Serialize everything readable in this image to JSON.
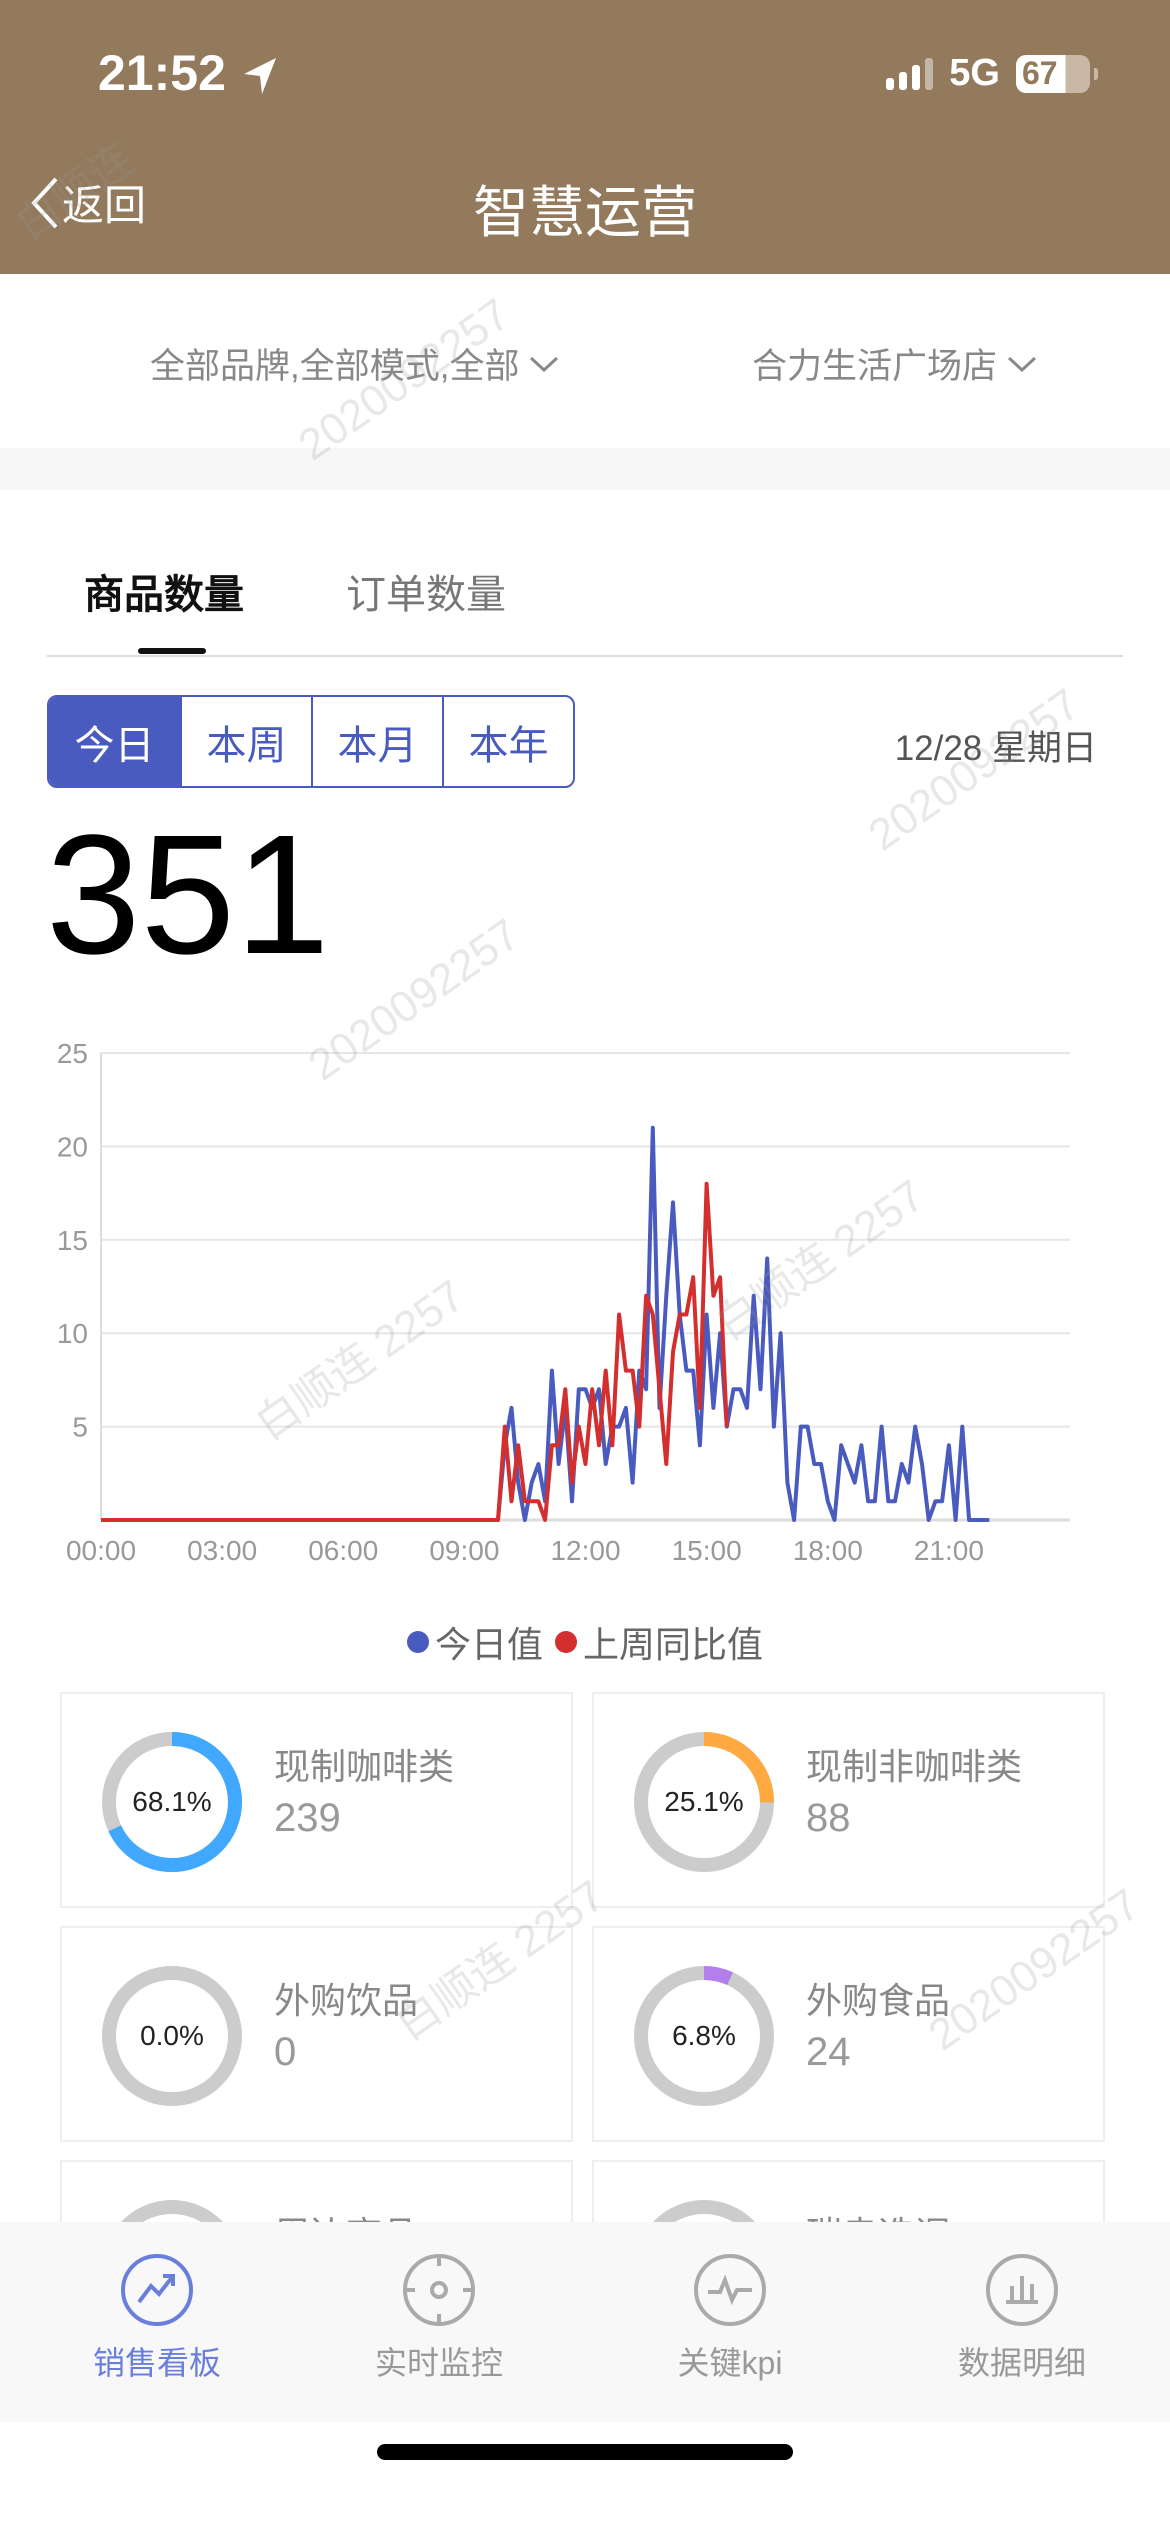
{
  "status_bar": {
    "time": "21:52",
    "network": "5G",
    "battery": "67"
  },
  "header": {
    "back_label": "返回",
    "title": "智慧运营"
  },
  "filters": {
    "brand_mode": "全部品牌,全部模式,全部",
    "store": "合力生活广场店"
  },
  "tabs": [
    {
      "label": "商品数量",
      "active": true
    },
    {
      "label": "订单数量",
      "active": false
    }
  ],
  "period": {
    "options": [
      "今日",
      "本周",
      "本月",
      "本年"
    ],
    "selected": "今日"
  },
  "date": "12/28 星期日",
  "total": "351",
  "colors": {
    "header": "#937a5d",
    "accent": "#4a5bbf",
    "today": "#4a5bbf",
    "last_week": "#d32f2f"
  },
  "chart_data": {
    "type": "line",
    "xlabel": "",
    "ylabel": "",
    "ylim": [
      0,
      25
    ],
    "yticks": [
      "5",
      "10",
      "15",
      "20",
      "25"
    ],
    "xticks": [
      "00:00",
      "03:00",
      "06:00",
      "09:00",
      "12:00",
      "15:00",
      "18:00",
      "21:00"
    ],
    "xlim": [
      "00:00",
      "24:00"
    ],
    "grid": true,
    "legend": "bottom",
    "series": [
      {
        "name": "今日值",
        "color": "#4a5bbf",
        "points": [
          [
            "00:00",
            0
          ],
          [
            "09:50",
            0
          ],
          [
            "10:00",
            4
          ],
          [
            "10:10",
            6
          ],
          [
            "10:20",
            2
          ],
          [
            "10:30",
            0
          ],
          [
            "10:40",
            2
          ],
          [
            "10:50",
            3
          ],
          [
            "11:00",
            1
          ],
          [
            "11:10",
            8
          ],
          [
            "11:20",
            3
          ],
          [
            "11:30",
            6
          ],
          [
            "11:40",
            1
          ],
          [
            "11:50",
            7
          ],
          [
            "12:00",
            7
          ],
          [
            "12:10",
            6
          ],
          [
            "12:20",
            7
          ],
          [
            "12:30",
            3
          ],
          [
            "12:40",
            5
          ],
          [
            "12:50",
            5
          ],
          [
            "13:00",
            6
          ],
          [
            "13:10",
            2
          ],
          [
            "13:20",
            8
          ],
          [
            "13:30",
            7
          ],
          [
            "13:40",
            21
          ],
          [
            "13:50",
            6
          ],
          [
            "14:00",
            12
          ],
          [
            "14:10",
            17
          ],
          [
            "14:20",
            11
          ],
          [
            "14:30",
            8
          ],
          [
            "14:40",
            8
          ],
          [
            "14:50",
            4
          ],
          [
            "15:00",
            11
          ],
          [
            "15:10",
            6
          ],
          [
            "15:20",
            10
          ],
          [
            "15:30",
            5
          ],
          [
            "15:40",
            7
          ],
          [
            "15:50",
            7
          ],
          [
            "16:00",
            6
          ],
          [
            "16:10",
            12
          ],
          [
            "16:20",
            7
          ],
          [
            "16:30",
            14
          ],
          [
            "16:40",
            5
          ],
          [
            "16:50",
            10
          ],
          [
            "17:00",
            2
          ],
          [
            "17:10",
            0
          ],
          [
            "17:20",
            5
          ],
          [
            "17:30",
            5
          ],
          [
            "17:40",
            3
          ],
          [
            "17:50",
            3
          ],
          [
            "18:00",
            1
          ],
          [
            "18:10",
            0
          ],
          [
            "18:20",
            4
          ],
          [
            "18:30",
            3
          ],
          [
            "18:40",
            2
          ],
          [
            "18:50",
            4
          ],
          [
            "19:00",
            1
          ],
          [
            "19:10",
            1
          ],
          [
            "19:20",
            5
          ],
          [
            "19:30",
            1
          ],
          [
            "19:40",
            1
          ],
          [
            "19:50",
            3
          ],
          [
            "20:00",
            2
          ],
          [
            "20:10",
            5
          ],
          [
            "20:20",
            3
          ],
          [
            "20:30",
            0
          ],
          [
            "20:40",
            1
          ],
          [
            "20:50",
            1
          ],
          [
            "21:00",
            4
          ],
          [
            "21:10",
            0
          ],
          [
            "21:20",
            5
          ],
          [
            "21:30",
            0
          ],
          [
            "21:40",
            0
          ],
          [
            "21:50",
            0
          ],
          [
            "22:00",
            0
          ]
        ]
      },
      {
        "name": "上周同比值",
        "color": "#d32f2f",
        "points": [
          [
            "00:00",
            0
          ],
          [
            "09:50",
            0
          ],
          [
            "10:00",
            5
          ],
          [
            "10:10",
            1
          ],
          [
            "10:20",
            4
          ],
          [
            "10:30",
            1
          ],
          [
            "10:40",
            1
          ],
          [
            "10:50",
            1
          ],
          [
            "11:00",
            0
          ],
          [
            "11:10",
            4
          ],
          [
            "11:20",
            4
          ],
          [
            "11:30",
            7
          ],
          [
            "11:40",
            2
          ],
          [
            "11:50",
            5
          ],
          [
            "12:00",
            3
          ],
          [
            "12:10",
            7
          ],
          [
            "12:20",
            4
          ],
          [
            "12:30",
            8
          ],
          [
            "12:40",
            4
          ],
          [
            "12:50",
            11
          ],
          [
            "13:00",
            8
          ],
          [
            "13:10",
            8
          ],
          [
            "13:20",
            5
          ],
          [
            "13:30",
            12
          ],
          [
            "13:40",
            11
          ],
          [
            "13:50",
            7
          ],
          [
            "14:00",
            3
          ],
          [
            "14:10",
            9
          ],
          [
            "14:20",
            11
          ],
          [
            "14:30",
            11
          ],
          [
            "14:40",
            13
          ],
          [
            "14:50",
            6
          ],
          [
            "15:00",
            18
          ],
          [
            "15:10",
            12
          ],
          [
            "15:20",
            13
          ],
          [
            "15:30",
            5
          ]
        ]
      }
    ]
  },
  "categories": [
    {
      "name": "现制咖啡类",
      "value": "239",
      "percent_label": "68.1%",
      "percent": 68.1,
      "color": "#40a9ff"
    },
    {
      "name": "现制非咖啡类",
      "value": "88",
      "percent_label": "25.1%",
      "percent": 25.1,
      "color": "#ffa940"
    },
    {
      "name": "外购饮品",
      "value": "0",
      "percent_label": "0.0%",
      "percent": 0.0,
      "color": "#b37feb"
    },
    {
      "name": "外购食品",
      "value": "24",
      "percent_label": "6.8%",
      "percent": 6.8,
      "color": "#b37feb"
    }
  ],
  "tabbar": [
    {
      "label": "销售看板",
      "icon": "trend-chart-icon",
      "active": true
    },
    {
      "label": "实时监控",
      "icon": "crosshair-target-icon",
      "active": false
    },
    {
      "label": "关键kpi",
      "icon": "pulse-icon",
      "active": false
    },
    {
      "label": "数据明细",
      "icon": "bar-chart-icon",
      "active": false
    }
  ],
  "watermark": {
    "name": "白顺连",
    "id": "2020092257",
    "combo": "白顺连 2257"
  }
}
